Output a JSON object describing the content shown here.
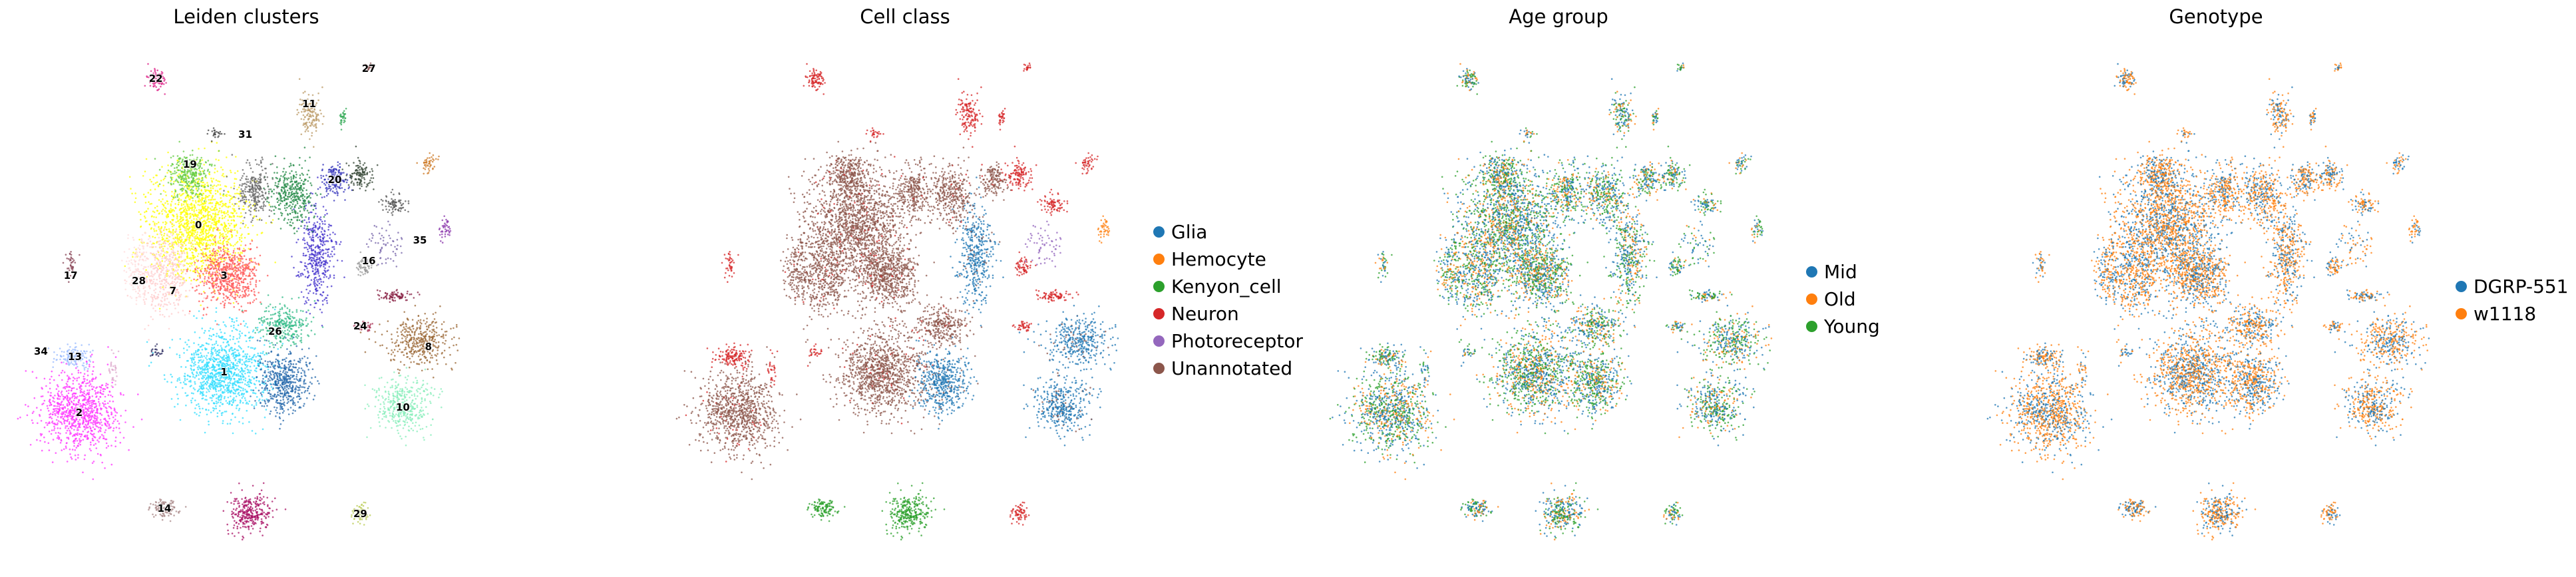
{
  "figure": {
    "panels": [
      {
        "title": "Leiden clusters"
      },
      {
        "title": "Cell class"
      },
      {
        "title": "Age group"
      },
      {
        "title": "Genotype"
      }
    ]
  },
  "chart_data": [
    {
      "type": "scatter",
      "title": "Leiden clusters",
      "xlabel": "",
      "ylabel": "",
      "grid": false,
      "cluster_labels": [
        {
          "label": "0",
          "x": 0.38,
          "y": 0.34,
          "color": "#ffff00"
        },
        {
          "label": "1",
          "x": 0.44,
          "y": 0.63,
          "color": "#33ddff"
        },
        {
          "label": "2",
          "x": 0.1,
          "y": 0.71,
          "color": "#ff33ff"
        },
        {
          "label": "3",
          "x": 0.44,
          "y": 0.44,
          "color": "#ff5555"
        },
        {
          "label": "7",
          "x": 0.32,
          "y": 0.47,
          "color": "#ffcccc"
        },
        {
          "label": "8",
          "x": 0.92,
          "y": 0.58,
          "color": "#996633"
        },
        {
          "label": "10",
          "x": 0.86,
          "y": 0.7,
          "color": "#88eebb"
        },
        {
          "label": "11",
          "x": 0.64,
          "y": 0.1,
          "color": "#bb9966"
        },
        {
          "label": "13",
          "x": 0.09,
          "y": 0.6,
          "color": "#99bbff"
        },
        {
          "label": "14",
          "x": 0.3,
          "y": 0.9,
          "color": "#aa8888"
        },
        {
          "label": "16",
          "x": 0.78,
          "y": 0.41,
          "color": "#999999"
        },
        {
          "label": "17",
          "x": 0.08,
          "y": 0.44,
          "color": "#884455"
        },
        {
          "label": "19",
          "x": 0.36,
          "y": 0.22,
          "color": "#66cc44"
        },
        {
          "label": "20",
          "x": 0.7,
          "y": 0.25,
          "color": "#3333bb"
        },
        {
          "label": "22",
          "x": 0.28,
          "y": 0.05,
          "color": "#dd2288"
        },
        {
          "label": "24",
          "x": 0.76,
          "y": 0.54,
          "color": "#aa3355"
        },
        {
          "label": "26",
          "x": 0.56,
          "y": 0.55,
          "color": "#33bb88"
        },
        {
          "label": "27",
          "x": 0.78,
          "y": 0.03,
          "color": "#662222"
        },
        {
          "label": "28",
          "x": 0.24,
          "y": 0.45,
          "color": "#ffdddd"
        },
        {
          "label": "29",
          "x": 0.76,
          "y": 0.91,
          "color": "#bbcc55"
        },
        {
          "label": "31",
          "x": 0.49,
          "y": 0.16,
          "color": "#888888"
        },
        {
          "label": "34",
          "x": 0.01,
          "y": 0.59,
          "color": "#444444"
        },
        {
          "label": "35",
          "x": 0.9,
          "y": 0.37,
          "color": "#444444"
        }
      ]
    },
    {
      "type": "scatter",
      "title": "Cell class",
      "xlabel": "",
      "ylabel": "",
      "grid": false,
      "legend": {
        "placement": "right",
        "entries": [
          {
            "name": "Glia",
            "color": "#1f77b4"
          },
          {
            "name": "Hemocyte",
            "color": "#ff7f0e"
          },
          {
            "name": "Kenyon_cell",
            "color": "#2ca02c"
          },
          {
            "name": "Neuron",
            "color": "#d62728"
          },
          {
            "name": "Photoreceptor",
            "color": "#9467bd"
          },
          {
            "name": "Unannotated",
            "color": "#8c564b"
          }
        ]
      }
    },
    {
      "type": "scatter",
      "title": "Age group",
      "xlabel": "",
      "ylabel": "",
      "grid": false,
      "legend": {
        "placement": "right",
        "entries": [
          {
            "name": "Mid",
            "color": "#1f77b4"
          },
          {
            "name": "Old",
            "color": "#ff7f0e"
          },
          {
            "name": "Young",
            "color": "#2ca02c"
          }
        ]
      }
    },
    {
      "type": "scatter",
      "title": "Genotype",
      "xlabel": "",
      "ylabel": "",
      "grid": false,
      "legend": {
        "placement": "right",
        "entries": [
          {
            "name": "DGRP-551",
            "color": "#1f77b4"
          },
          {
            "name": "w1118",
            "color": "#ff7f0e"
          }
        ]
      }
    }
  ]
}
